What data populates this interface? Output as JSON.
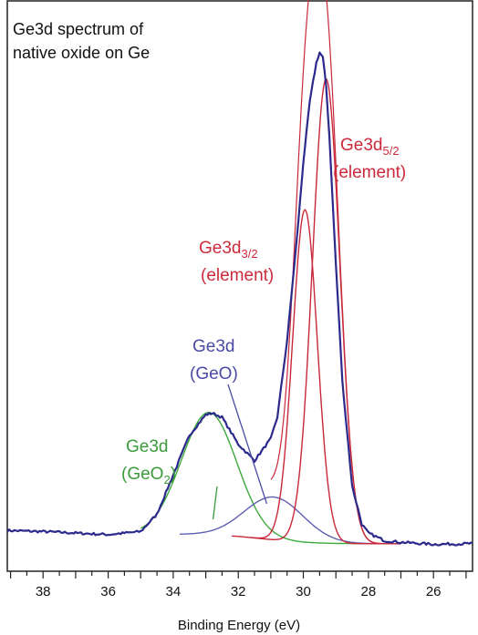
{
  "chart_data": {
    "type": "line",
    "title_lines": [
      "Ge3d spectrum of",
      "native oxide on Ge"
    ],
    "xlabel": "Binding Energy (eV)",
    "ylabel": "",
    "xlim": [
      39.1,
      24.8
    ],
    "ylim": [
      0,
      100
    ],
    "x_reversed": true,
    "grid": false,
    "x_ticks": [
      38,
      36,
      34,
      32,
      30,
      28,
      26
    ],
    "series": [
      {
        "name": "measured",
        "color": "#2b2a8c",
        "x": [
          39.1,
          38.0,
          37.0,
          36.0,
          35.0,
          34.5,
          34.0,
          33.5,
          33.0,
          32.8,
          32.5,
          32.0,
          31.5,
          31.0,
          30.8,
          30.5,
          30.2,
          30.0,
          29.8,
          29.6,
          29.5,
          29.4,
          29.3,
          29.2,
          29.0,
          28.8,
          28.5,
          28.2,
          28.0,
          27.5,
          27.0,
          26.0,
          25.0,
          24.8
        ],
        "y": [
          2.8,
          2.6,
          2.3,
          2.0,
          2.6,
          6.0,
          13.7,
          21.5,
          25.5,
          25.8,
          25.0,
          19.7,
          16.5,
          20.8,
          25.0,
          40.0,
          60.0,
          75.0,
          87.0,
          94.5,
          96.5,
          95.5,
          90.0,
          80.0,
          55.0,
          32.0,
          11.5,
          4.0,
          2.3,
          0.8,
          0.5,
          0.1,
          0.2,
          0.3
        ]
      },
      {
        "name": "Ge3d (GeO2)",
        "color": "#3eaa3e",
        "center": 32.9,
        "height": 24.0,
        "width": 0.85,
        "baseline_left": 2.1,
        "baseline_right": 0.2
      },
      {
        "name": "Ge3d (GeO)",
        "color": "#6060b0",
        "center": 30.9,
        "height": 8.4,
        "width": 0.9
      },
      {
        "name": "Ge3d3/2 (element)",
        "color": "#c8283a",
        "center": 29.95,
        "height": 65.2,
        "width": 0.38
      },
      {
        "name": "Ge3d5/2 (element)",
        "color": "#c8283a",
        "center": 29.3,
        "height": 91.0,
        "width": 0.42
      }
    ],
    "annotations": [
      {
        "id": "geo2",
        "line1": "Ge3d",
        "line2_main": "(GeO",
        "line2_sub": "2",
        "line2_tail": ")",
        "color": "#3b9a3b"
      },
      {
        "id": "geo",
        "line1": "Ge3d",
        "line2_main": "(GeO)",
        "line2_sub": "",
        "line2_tail": "",
        "color": "#4a4aa6"
      },
      {
        "id": "d32",
        "line1_main": "Ge3d",
        "line1_sub": "3/2",
        "line2": "(element)",
        "color": "#cc2a3a"
      },
      {
        "id": "d52",
        "line1_main": "Ge3d",
        "line1_sub": "5/2",
        "line2": "(element)",
        "color": "#cc2a3a"
      }
    ]
  }
}
